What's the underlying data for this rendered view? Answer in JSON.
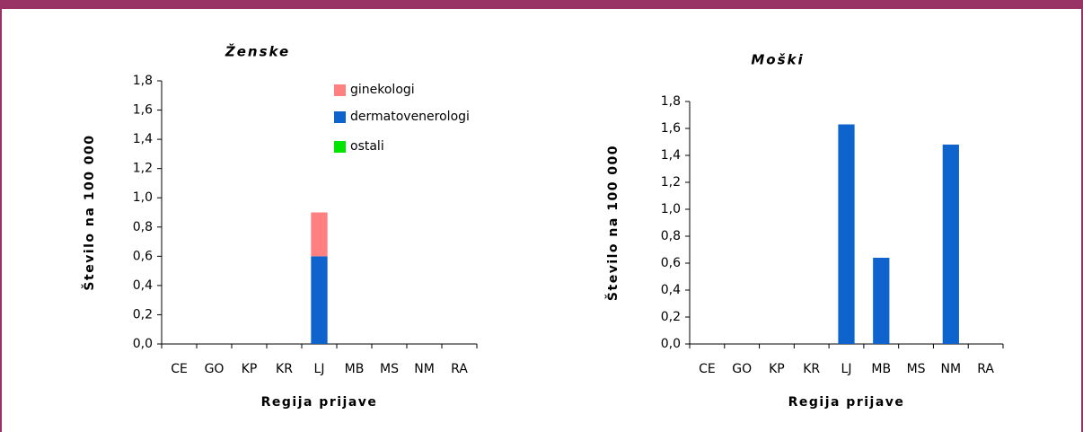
{
  "chart_data": [
    {
      "type": "bar",
      "stacked": true,
      "title": "Ženske",
      "x_label": "Regija prijave",
      "y_label": "Število na 100 000",
      "categories": [
        "CE",
        "GO",
        "KP",
        "KR",
        "LJ",
        "MB",
        "MS",
        "NM",
        "RA"
      ],
      "series": [
        {
          "name": "dermatovenerologi",
          "color": "#0f63cc",
          "values": [
            0,
            0,
            0,
            0,
            0.6,
            0,
            0,
            0,
            0
          ]
        },
        {
          "name": "ginekologi",
          "color": "#ff8080",
          "values": [
            0,
            0,
            0,
            0,
            0.3,
            0,
            0,
            0,
            0
          ]
        },
        {
          "name": "ostali",
          "color": "#00e600",
          "values": [
            0,
            0,
            0,
            0,
            0,
            0,
            0,
            0,
            0
          ]
        }
      ],
      "legend_order": [
        "ginekologi",
        "dermatovenerologi",
        "ostali"
      ],
      "ylim": [
        0,
        1.8
      ],
      "yticks": [
        {
          "value": 0,
          "label": "0,0"
        },
        {
          "value": 0.2,
          "label": "0,2"
        },
        {
          "value": 0.4,
          "label": "0,4"
        },
        {
          "value": 0.6,
          "label": "0,6"
        },
        {
          "value": 0.8,
          "label": "0,8"
        },
        {
          "value": 1.0,
          "label": "1,0"
        },
        {
          "value": 1.2,
          "label": "1,2"
        },
        {
          "value": 1.4,
          "label": "1,4"
        },
        {
          "value": 1.6,
          "label": "1,6"
        },
        {
          "value": 1.8,
          "label": "1,8"
        }
      ]
    },
    {
      "type": "bar",
      "title": "Moški",
      "x_label": "Regija prijave",
      "y_label": "Število na 100 000",
      "categories": [
        "CE",
        "GO",
        "KP",
        "KR",
        "LJ",
        "MB",
        "MS",
        "NM",
        "RA"
      ],
      "values": [
        0,
        0,
        0,
        0,
        1.63,
        0.64,
        0,
        1.48,
        0
      ],
      "color": "#0f63cc",
      "ylim": [
        0,
        1.8
      ],
      "yticks": [
        {
          "value": 0,
          "label": "0,0"
        },
        {
          "value": 0.2,
          "label": "0,2"
        },
        {
          "value": 0.4,
          "label": "0,4"
        },
        {
          "value": 0.6,
          "label": "0,6"
        },
        {
          "value": 0.8,
          "label": "0,8"
        },
        {
          "value": 1.0,
          "label": "1,0"
        },
        {
          "value": 1.2,
          "label": "1,2"
        },
        {
          "value": 1.4,
          "label": "1,4"
        },
        {
          "value": 1.6,
          "label": "1,6"
        },
        {
          "value": 1.8,
          "label": "1,8"
        }
      ]
    }
  ]
}
